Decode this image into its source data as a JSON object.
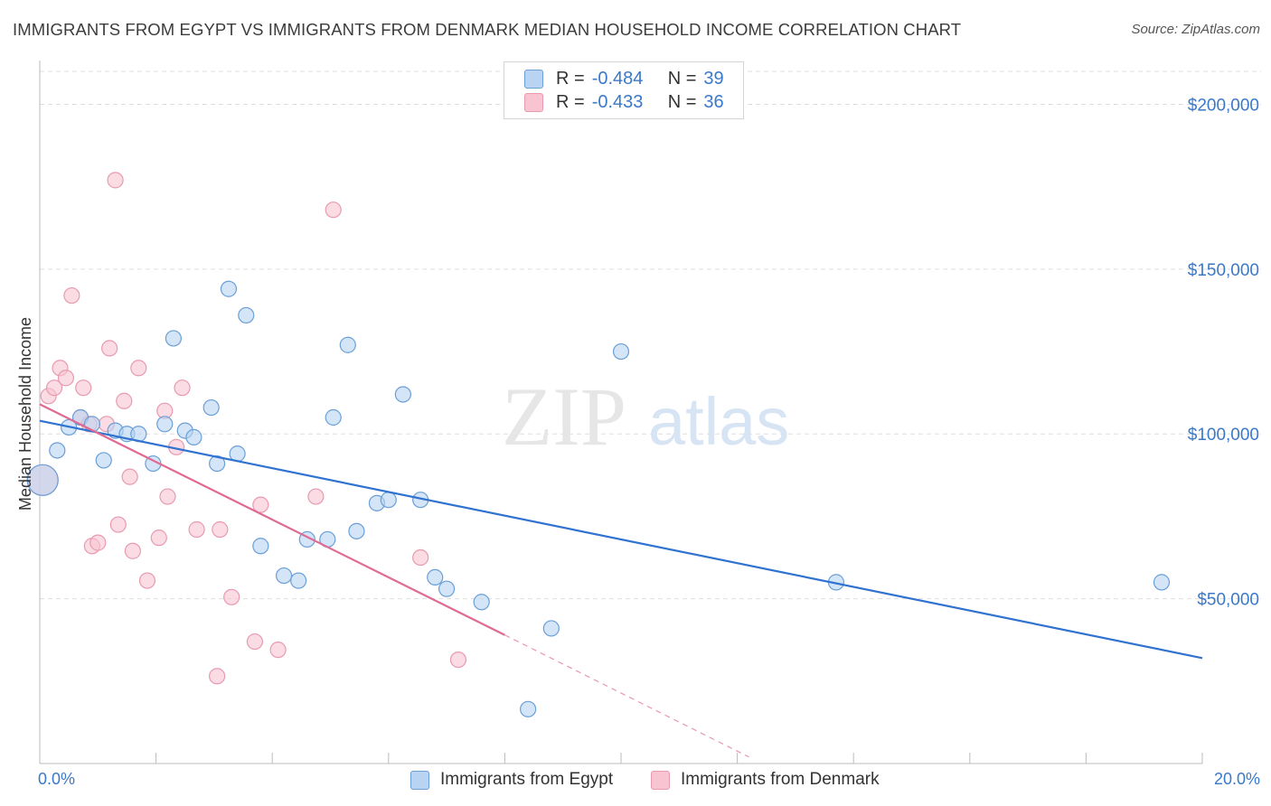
{
  "title": "IMMIGRANTS FROM EGYPT VS IMMIGRANTS FROM DENMARK MEDIAN HOUSEHOLD INCOME CORRELATION CHART",
  "source": "Source: ZipAtlas.com",
  "watermark": {
    "zip": "ZIP",
    "atlas": "atlas"
  },
  "colors": {
    "egypt_fill": "#b8d4f2",
    "egypt_stroke": "#6a9fd8",
    "egypt_line": "#2f72d0",
    "denmark_fill": "#f8c4d2",
    "denmark_stroke": "#e89ab0",
    "denmark_line": "#e06a92",
    "axis_text": "#3a78c9",
    "grid": "#dddddd"
  },
  "legend": {
    "rows": [
      {
        "r_label": "R =",
        "r_value": "-0.484",
        "n_label": "N =",
        "n_value": "39"
      },
      {
        "r_label": "R =",
        "r_value": "-0.433",
        "n_label": "N =",
        "n_value": "36"
      }
    ]
  },
  "chart_data": {
    "type": "scatter",
    "title": "IMMIGRANTS FROM EGYPT VS IMMIGRANTS FROM DENMARK MEDIAN HOUSEHOLD INCOME CORRELATION CHART",
    "xlabel": "",
    "ylabel": "Median Household Income",
    "xlim": [
      0,
      20
    ],
    "ylim": [
      0,
      210000
    ],
    "x_tick_labels": [
      "0.0%",
      "20.0%"
    ],
    "y_ticks": [
      50000,
      100000,
      150000,
      200000
    ],
    "y_tick_labels": [
      "$50,000",
      "$100,000",
      "$150,000",
      "$200,000"
    ],
    "grid": true,
    "series": [
      {
        "name": "Immigrants from Egypt",
        "trend": {
          "x0": 0.0,
          "y0": 104000,
          "x1": 20.0,
          "y1": 32000
        },
        "points": [
          {
            "x": 0.05,
            "y": 86000,
            "big": true
          },
          {
            "x": 0.3,
            "y": 95000
          },
          {
            "x": 0.5,
            "y": 102000
          },
          {
            "x": 0.7,
            "y": 105000
          },
          {
            "x": 0.9,
            "y": 103000
          },
          {
            "x": 1.1,
            "y": 92000
          },
          {
            "x": 1.3,
            "y": 101000
          },
          {
            "x": 1.5,
            "y": 100000
          },
          {
            "x": 1.7,
            "y": 100000
          },
          {
            "x": 1.95,
            "y": 91000
          },
          {
            "x": 2.15,
            "y": 103000
          },
          {
            "x": 2.3,
            "y": 129000
          },
          {
            "x": 2.5,
            "y": 101000
          },
          {
            "x": 2.65,
            "y": 99000
          },
          {
            "x": 2.95,
            "y": 108000
          },
          {
            "x": 3.05,
            "y": 91000
          },
          {
            "x": 3.25,
            "y": 144000
          },
          {
            "x": 3.4,
            "y": 94000
          },
          {
            "x": 3.55,
            "y": 136000
          },
          {
            "x": 3.8,
            "y": 66000
          },
          {
            "x": 4.2,
            "y": 57000
          },
          {
            "x": 4.45,
            "y": 55500
          },
          {
            "x": 4.6,
            "y": 68000
          },
          {
            "x": 4.95,
            "y": 68000
          },
          {
            "x": 5.05,
            "y": 105000
          },
          {
            "x": 5.3,
            "y": 127000
          },
          {
            "x": 5.45,
            "y": 70500
          },
          {
            "x": 5.8,
            "y": 79000
          },
          {
            "x": 6.0,
            "y": 80000
          },
          {
            "x": 6.25,
            "y": 112000
          },
          {
            "x": 6.55,
            "y": 80000
          },
          {
            "x": 6.8,
            "y": 56500
          },
          {
            "x": 7.0,
            "y": 53000
          },
          {
            "x": 7.6,
            "y": 49000
          },
          {
            "x": 8.4,
            "y": 16500
          },
          {
            "x": 8.8,
            "y": 41000
          },
          {
            "x": 10.0,
            "y": 125000
          },
          {
            "x": 13.7,
            "y": 55000
          },
          {
            "x": 19.3,
            "y": 55000
          }
        ]
      },
      {
        "name": "Immigrants from Denmark",
        "trend": {
          "x0": 0.0,
          "y0": 109000,
          "x1": 8.0,
          "y1": 39000
        },
        "trend_dashed": {
          "x0": 8.0,
          "y0": 39000,
          "x1": 12.2,
          "y1": 2000
        },
        "points": [
          {
            "x": 0.05,
            "y": 86000,
            "big": true
          },
          {
            "x": 0.15,
            "y": 111500
          },
          {
            "x": 0.25,
            "y": 114000
          },
          {
            "x": 0.35,
            "y": 120000
          },
          {
            "x": 0.45,
            "y": 117000
          },
          {
            "x": 0.55,
            "y": 142000
          },
          {
            "x": 0.7,
            "y": 105000
          },
          {
            "x": 0.75,
            "y": 114000
          },
          {
            "x": 0.85,
            "y": 103000
          },
          {
            "x": 0.9,
            "y": 66000
          },
          {
            "x": 1.0,
            "y": 67000
          },
          {
            "x": 1.15,
            "y": 103000
          },
          {
            "x": 1.2,
            "y": 126000
          },
          {
            "x": 1.3,
            "y": 177000
          },
          {
            "x": 1.35,
            "y": 72500
          },
          {
            "x": 1.45,
            "y": 110000
          },
          {
            "x": 1.55,
            "y": 87000
          },
          {
            "x": 1.6,
            "y": 64500
          },
          {
            "x": 1.7,
            "y": 120000
          },
          {
            "x": 1.85,
            "y": 55500
          },
          {
            "x": 2.05,
            "y": 68500
          },
          {
            "x": 2.15,
            "y": 107000
          },
          {
            "x": 2.2,
            "y": 81000
          },
          {
            "x": 2.35,
            "y": 96000
          },
          {
            "x": 2.45,
            "y": 114000
          },
          {
            "x": 2.7,
            "y": 71000
          },
          {
            "x": 3.05,
            "y": 26500
          },
          {
            "x": 3.1,
            "y": 71000
          },
          {
            "x": 3.3,
            "y": 50500
          },
          {
            "x": 3.7,
            "y": 37000
          },
          {
            "x": 3.8,
            "y": 78500
          },
          {
            "x": 4.1,
            "y": 34500
          },
          {
            "x": 4.75,
            "y": 81000
          },
          {
            "x": 5.05,
            "y": 168000
          },
          {
            "x": 6.55,
            "y": 62500
          },
          {
            "x": 7.2,
            "y": 31500
          }
        ]
      }
    ]
  }
}
